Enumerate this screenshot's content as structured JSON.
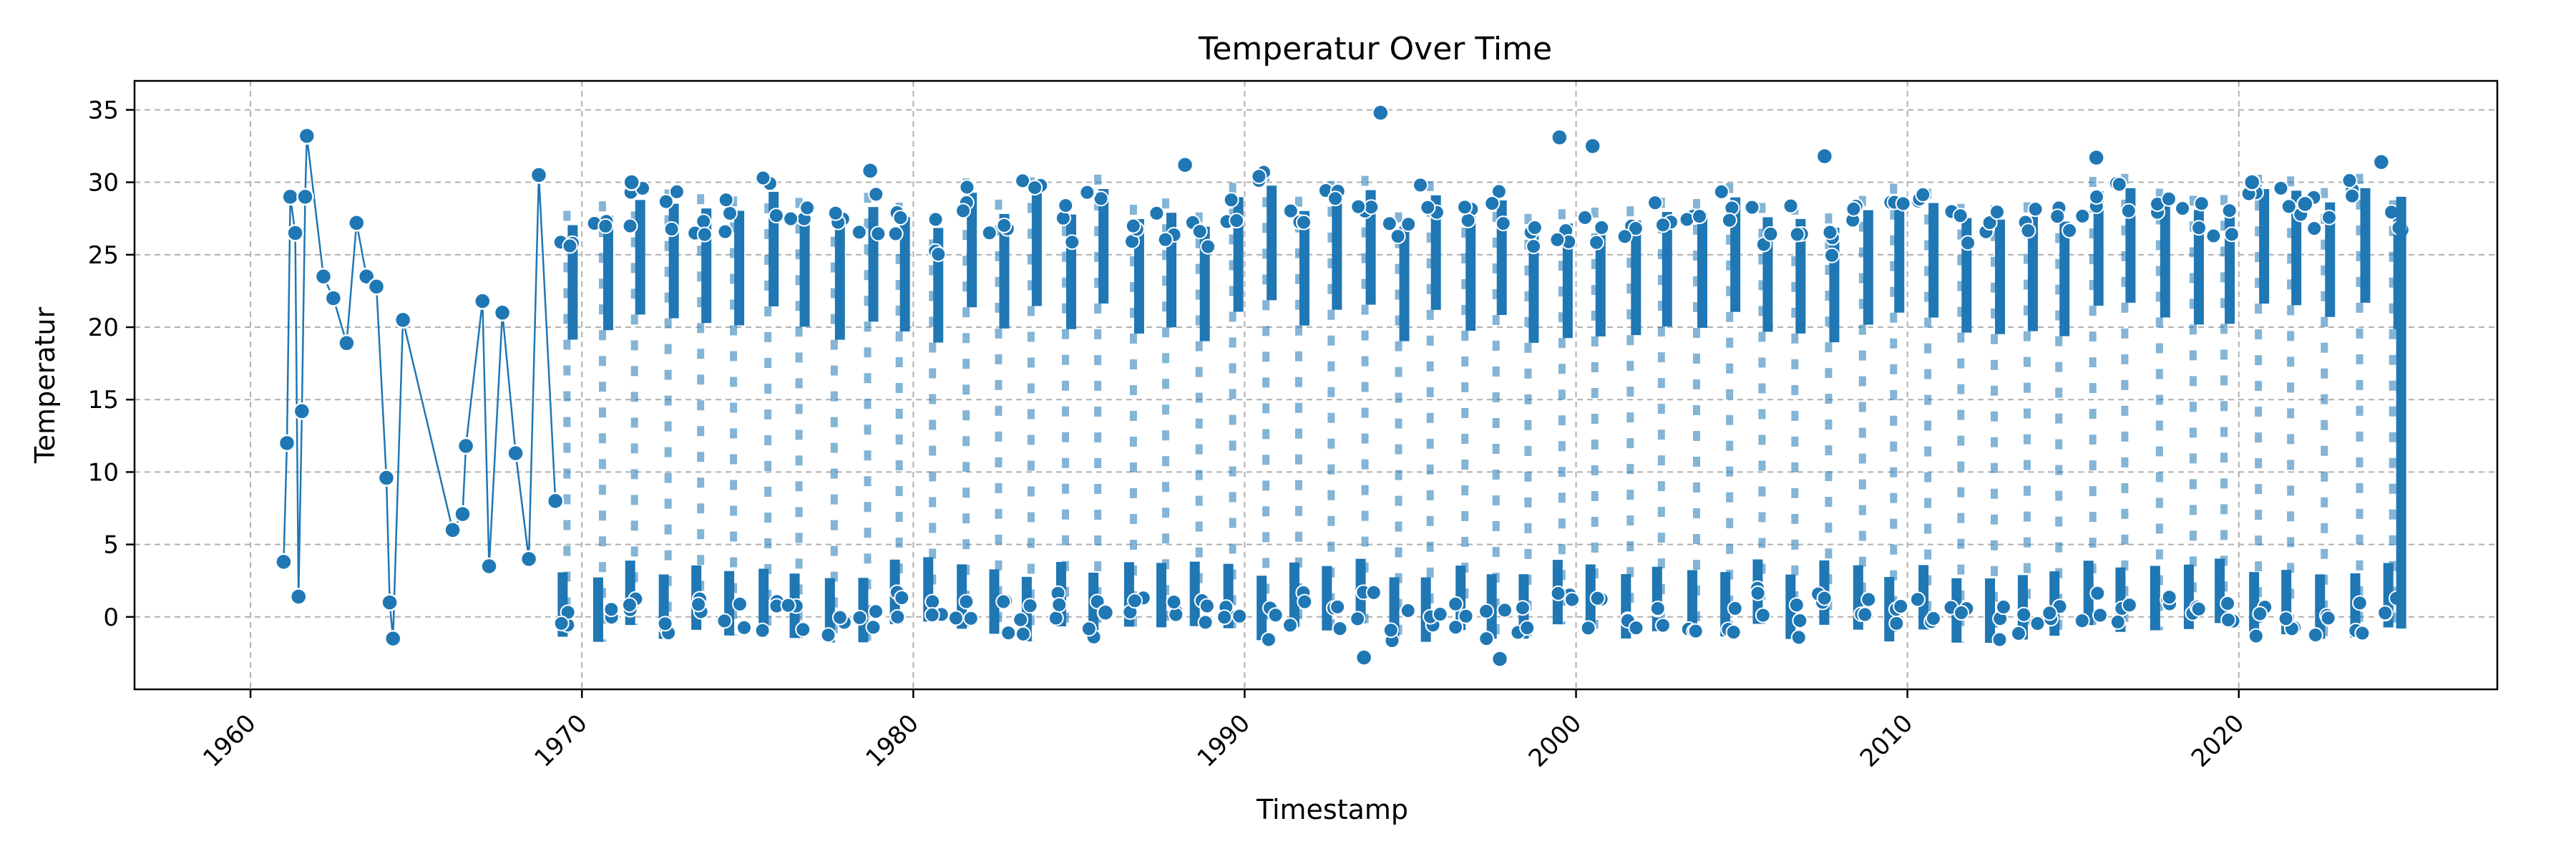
{
  "chart_data": {
    "type": "line",
    "title": "Temperatur Over Time",
    "xlabel": "Timestamp",
    "ylabel": "Temperatur",
    "xlim": [
      1956.5,
      2027.8
    ],
    "ylim": [
      -5,
      37
    ],
    "x_ticks": [
      1960,
      1970,
      1980,
      1990,
      2000,
      2010,
      2020
    ],
    "x_tick_labels": [
      "1960",
      "1970",
      "1980",
      "1990",
      "2000",
      "2010",
      "2020"
    ],
    "y_ticks": [
      0,
      5,
      10,
      15,
      20,
      25,
      30,
      35
    ],
    "y_tick_labels": [
      "0",
      "5",
      "10",
      "15",
      "20",
      "25",
      "30",
      "35"
    ],
    "grid": true,
    "series_color": "#1f77b4",
    "marker": "circle-white-edge",
    "sparse_points": [
      [
        1961.0,
        3.8
      ],
      [
        1961.1,
        12.0
      ],
      [
        1961.2,
        29.0
      ],
      [
        1961.35,
        26.5
      ],
      [
        1961.45,
        1.4
      ],
      [
        1961.55,
        14.2
      ],
      [
        1961.65,
        29.0
      ],
      [
        1961.7,
        33.2
      ],
      [
        1962.2,
        23.5
      ],
      [
        1962.5,
        22.0
      ],
      [
        1962.9,
        18.9
      ],
      [
        1963.2,
        27.2
      ],
      [
        1963.5,
        23.5
      ],
      [
        1963.8,
        22.8
      ],
      [
        1964.1,
        9.6
      ],
      [
        1964.2,
        1.0
      ],
      [
        1964.3,
        -1.5
      ],
      [
        1964.6,
        20.5
      ],
      [
        1966.1,
        6.0
      ],
      [
        1966.4,
        7.1
      ],
      [
        1966.5,
        11.8
      ],
      [
        1967.0,
        21.8
      ],
      [
        1967.2,
        3.5
      ],
      [
        1967.6,
        21.0
      ],
      [
        1968.0,
        11.3
      ],
      [
        1968.4,
        4.0
      ],
      [
        1968.7,
        30.5
      ],
      [
        1969.2,
        8.0
      ]
    ],
    "dense_range": {
      "start": 1969,
      "end": 2025,
      "min": -1.8,
      "max": 31.5
    },
    "outliers": [
      [
        1993.6,
        -2.8
      ],
      [
        1994.1,
        34.8
      ],
      [
        1997.7,
        -2.9
      ],
      [
        1999.5,
        33.1
      ],
      [
        2000.5,
        32.5
      ],
      [
        1971.5,
        30.0
      ],
      [
        1978.7,
        30.8
      ],
      [
        1985.8,
        0.3
      ],
      [
        1988.2,
        31.2
      ],
      [
        2007.5,
        31.8
      ],
      [
        2015.7,
        31.7
      ],
      [
        2024.3,
        31.4
      ],
      [
        2020.4,
        30.0
      ],
      [
        2022.0,
        28.5
      ]
    ]
  }
}
